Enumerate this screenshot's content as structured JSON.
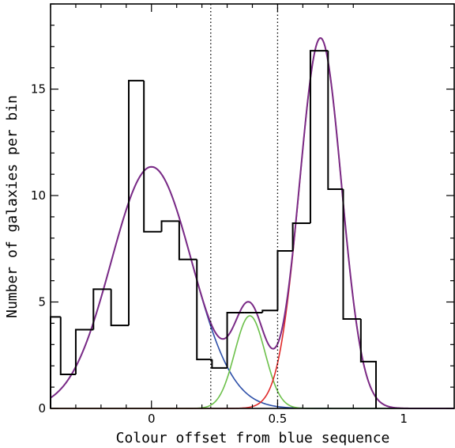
{
  "chart_data": {
    "type": "line",
    "title": "",
    "xlabel": "Colour offset from blue sequence",
    "ylabel": "Number of galaxies per bin",
    "xlim": [
      -0.4,
      1.2
    ],
    "ylim": [
      0,
      19
    ],
    "x_ticks": [
      0,
      0.5,
      1
    ],
    "x_tick_labels": [
      "0",
      "0.5",
      "1"
    ],
    "y_ticks": [
      0,
      5,
      10,
      15
    ],
    "y_tick_labels": [
      "0",
      "5",
      "10",
      "15"
    ],
    "vertical_lines": [
      0.235,
      0.5
    ],
    "histogram": {
      "bin_edges": [
        -0.4,
        -0.36,
        -0.3,
        -0.23,
        -0.16,
        -0.09,
        -0.03,
        0.04,
        0.11,
        0.18,
        0.24,
        0.3,
        0.37,
        0.44,
        0.5,
        0.56,
        0.63,
        0.7,
        0.76,
        0.83,
        0.89
      ],
      "counts": [
        4.3,
        1.6,
        3.7,
        5.6,
        3.9,
        15.4,
        8.3,
        8.8,
        7.0,
        2.3,
        1.9,
        4.5,
        4.5,
        4.6,
        7.4,
        8.7,
        16.8,
        10.3,
        4.2,
        2.2
      ]
    },
    "series": [
      {
        "component": "blue-gaussian",
        "color": "#2d4fa8",
        "amplitude": 11.35,
        "mean": 0.0,
        "sigma": 0.16
      },
      {
        "component": "green-gaussian",
        "color": "#6cc04a",
        "amplitude": 4.35,
        "mean": 0.39,
        "sigma": 0.06
      },
      {
        "component": "red-gaussian",
        "color": "#e02a2a",
        "amplitude": 17.4,
        "mean": 0.67,
        "sigma": 0.083
      },
      {
        "component": "total-model",
        "color": "#7a2a86"
      }
    ]
  }
}
